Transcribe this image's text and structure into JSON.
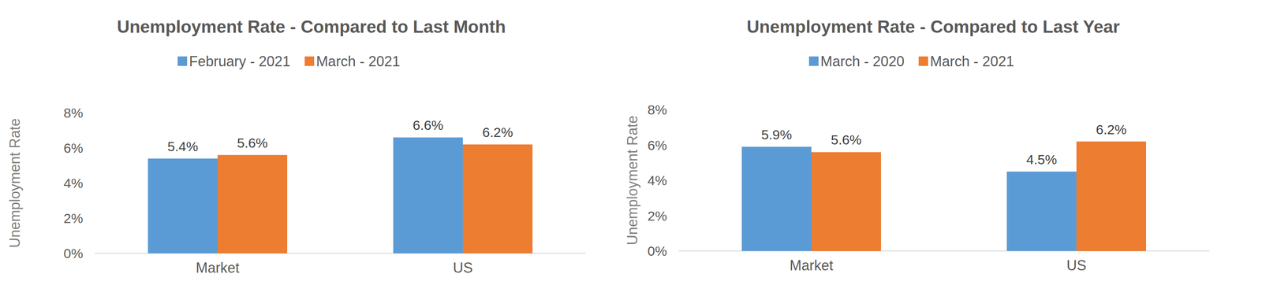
{
  "chart_data": [
    {
      "type": "bar",
      "title": "Unemployment Rate - Compared to Last Month",
      "categories": [
        "Market",
        "US"
      ],
      "y_label": "Unemployment Rate",
      "series": [
        {
          "name": "February - 2021",
          "color": "#5b9bd5",
          "values": [
            5.4,
            6.6
          ],
          "value_labels": [
            "5.4%",
            "6.6%"
          ]
        },
        {
          "name": "March - 2021",
          "color": "#ed7d31",
          "values": [
            5.6,
            6.2
          ],
          "value_labels": [
            "5.6%",
            "6.2%"
          ]
        }
      ],
      "ylim": [
        0,
        8
      ],
      "yticks": [
        {
          "value": 0,
          "label": "0%"
        },
        {
          "value": 2,
          "label": "2%"
        },
        {
          "value": 4,
          "label": "4%"
        },
        {
          "value": 6,
          "label": "6%"
        },
        {
          "value": 8,
          "label": "8%"
        }
      ],
      "grid": false,
      "legend": "top",
      "data_labels": true
    },
    {
      "type": "bar",
      "title": "Unemployment Rate - Compared to Last Year",
      "categories": [
        "Market",
        "US"
      ],
      "y_label": "Unemployment Rate",
      "series": [
        {
          "name": "March - 2020",
          "color": "#5b9bd5",
          "values": [
            5.9,
            4.5
          ],
          "value_labels": [
            "5.9%",
            "4.5%"
          ]
        },
        {
          "name": "March - 2021",
          "color": "#ed7d31",
          "values": [
            5.6,
            6.2
          ],
          "value_labels": [
            "5.6%",
            "6.2%"
          ]
        }
      ],
      "ylim": [
        0,
        8
      ],
      "yticks": [
        {
          "value": 0,
          "label": "0%"
        },
        {
          "value": 2,
          "label": "2%"
        },
        {
          "value": 4,
          "label": "4%"
        },
        {
          "value": 6,
          "label": "6%"
        },
        {
          "value": 8,
          "label": "8%"
        }
      ],
      "grid": false,
      "legend": "top",
      "data_labels": true
    }
  ]
}
